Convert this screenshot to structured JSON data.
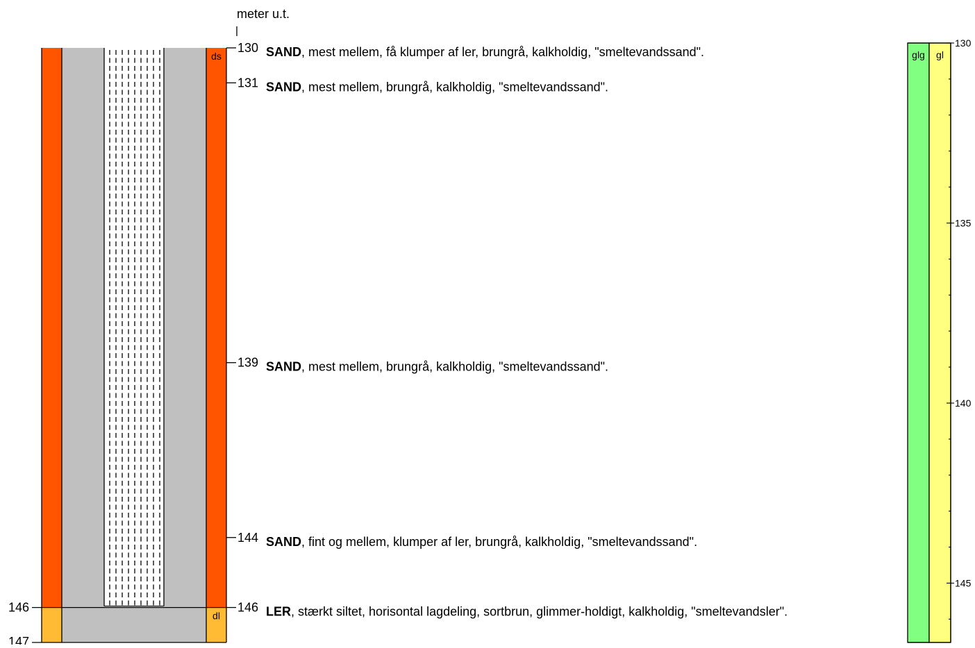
{
  "unit_label": "meter u.t.",
  "left_depth_labels": [
    "146",
    "147"
  ],
  "formation_codes": [
    {
      "code": "ds",
      "from": 130,
      "to": 146,
      "color": "#FF5500"
    },
    {
      "code": "dl",
      "from": 146,
      "to": 147,
      "color": "#FFBB33"
    }
  ],
  "layers": [
    {
      "depth": 130,
      "depth_label": "130",
      "name": "SAND",
      "description": ", mest mellem, få klumper af ler, brungrå, kalkholdig, \"smeltevandssand\"."
    },
    {
      "depth": 131,
      "depth_label": "131",
      "name": "SAND",
      "description": ", mest mellem, brungrå, kalkholdig, \"smeltevandssand\"."
    },
    {
      "depth": 139,
      "depth_label": "139",
      "name": "SAND",
      "description": ", mest mellem, brungrå, kalkholdig, \"smeltevandssand\"."
    },
    {
      "depth": 144,
      "depth_label": "144",
      "name": "SAND",
      "description": ", fint og mellem, klumper af ler, brungrå, kalkholdig, \"smeltevandssand\"."
    },
    {
      "depth": 146,
      "depth_label": "146",
      "name": "LER",
      "description": ", stærkt siltet, horisontal lagdeling, sortbrun, glimmer-holdigt, kalkholdig, \"smeltevandsler\"."
    }
  ],
  "right_columns": [
    {
      "code": "glg",
      "color": "#80FF80"
    },
    {
      "code": "gl",
      "color": "#FFFF80"
    }
  ],
  "right_scale_ticks": [
    "130",
    "135",
    "140",
    "145"
  ],
  "colors": {
    "casing": "#C0C0C0",
    "screen_fill": "#FFFFFF",
    "outline": "#000000"
  }
}
